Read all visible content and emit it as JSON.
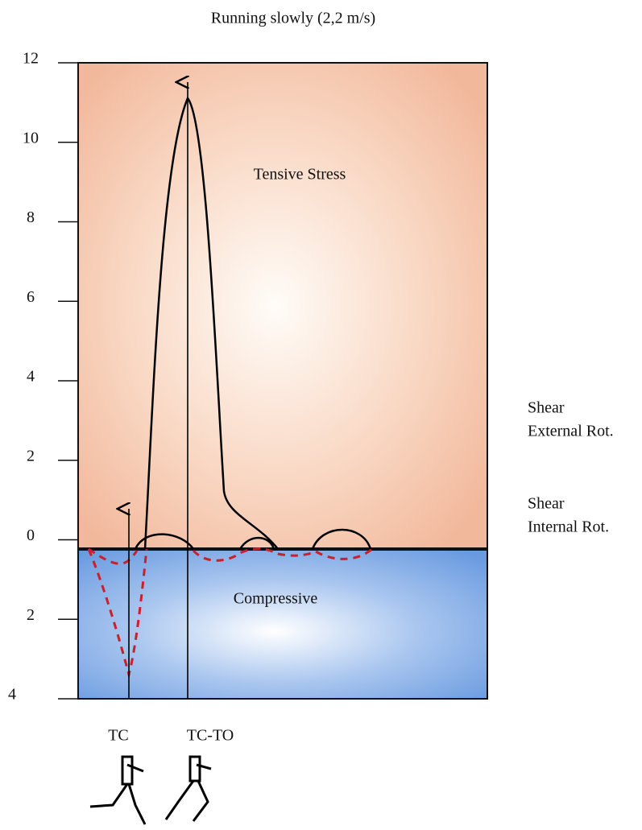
{
  "title": "Running slowly (2,2 m/s)",
  "axis": {
    "labels": [
      12,
      10,
      8,
      6,
      4,
      2,
      0,
      2,
      4
    ]
  },
  "regions": {
    "upper": "Tensive Stress",
    "lower": "Compressive"
  },
  "legend": {
    "external": [
      "Shear",
      "External Rot."
    ],
    "internal": [
      "Shear",
      "Internal  Rot."
    ]
  },
  "events": [
    "TC",
    "TC-TO"
  ]
}
